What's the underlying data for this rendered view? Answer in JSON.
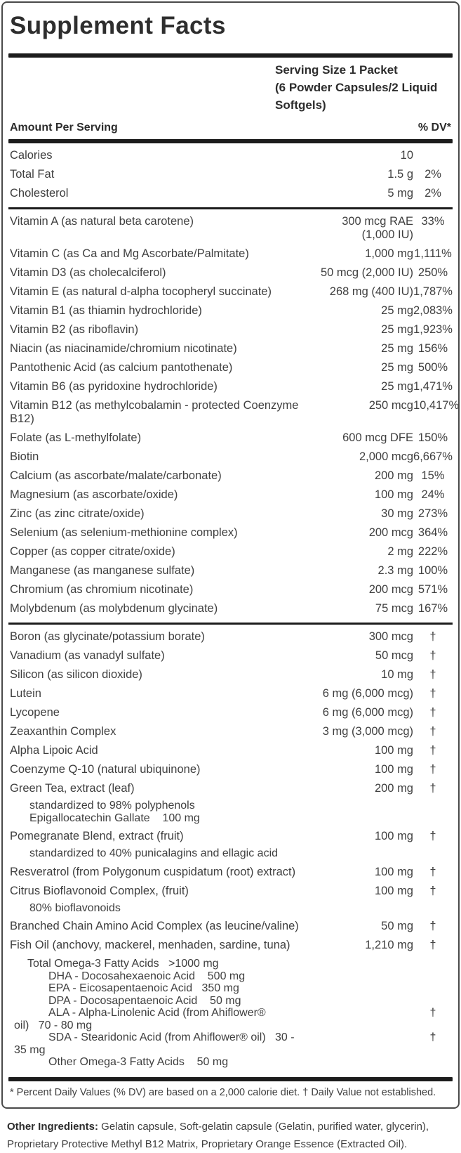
{
  "label": {
    "title": "Supplement Facts",
    "serving_line1": "Serving Size 1 Packet",
    "serving_line2": "(6 Powder Capsules/2 Liquid Softgels)",
    "amount_header": "Amount Per Serving",
    "dv_header": "% DV*",
    "footnote": "* Percent Daily Values (% DV) are based on a 2,000 calorie diet. † Daily Value not established."
  },
  "rows": [
    {
      "name": "Calories",
      "amount": "10",
      "dv": ""
    },
    {
      "name": "Total Fat",
      "amount": "1.5 g",
      "dv": "2%"
    },
    {
      "name": "Cholesterol",
      "amount": "5 mg",
      "dv": "2%"
    },
    {
      "rule": "med"
    },
    {
      "name": "Vitamin A (as natural beta carotene)",
      "amount": "300 mcg RAE (1,000 IU)",
      "dv": "33%"
    },
    {
      "name": "Vitamin C (as Ca and Mg Ascorbate/Palmitate)",
      "amount": "1,000 mg",
      "dv": "1,111%"
    },
    {
      "name": "Vitamin D3 (as cholecalciferol)",
      "amount": "50 mcg (2,000 IU)",
      "dv": "250%"
    },
    {
      "name": "Vitamin E (as natural d-alpha tocopheryl succinate)",
      "amount": "268 mg (400 IU)",
      "dv": "1,787%"
    },
    {
      "name": "Vitamin B1 (as thiamin hydrochloride)",
      "amount": "25 mg",
      "dv": "2,083%"
    },
    {
      "name": "Vitamin B2 (as riboflavin)",
      "amount": "25 mg",
      "dv": "1,923%"
    },
    {
      "name": "Niacin (as niacinamide/chromium nicotinate)",
      "amount": "25 mg",
      "dv": "156%"
    },
    {
      "name": "Pantothenic Acid (as calcium pantothenate)",
      "amount": "25 mg",
      "dv": "500%"
    },
    {
      "name": "Vitamin B6 (as pyridoxine hydrochloride)",
      "amount": "25 mg",
      "dv": "1,471%"
    },
    {
      "name": "Vitamin B12 (as methylcobalamin - protected Coenzyme B12)",
      "amount": "250 mcg",
      "dv": "10,417%"
    },
    {
      "name": "Folate (as L-methylfolate)",
      "amount": "600 mcg DFE",
      "dv": "150%"
    },
    {
      "name": "Biotin",
      "amount": "2,000 mcg",
      "dv": "6,667%"
    },
    {
      "name": "Calcium (as ascorbate/malate/carbonate)",
      "amount": "200 mg",
      "dv": "15%"
    },
    {
      "name": "Magnesium (as ascorbate/oxide)",
      "amount": "100 mg",
      "dv": "24%"
    },
    {
      "name": "Zinc (as zinc citrate/oxide)",
      "amount": "30 mg",
      "dv": "273%"
    },
    {
      "name": "Selenium (as selenium-methionine complex)",
      "amount": "200 mcg",
      "dv": "364%"
    },
    {
      "name": "Copper (as copper citrate/oxide)",
      "amount": "2 mg",
      "dv": "222%"
    },
    {
      "name": "Manganese (as manganese sulfate)",
      "amount": "2.3 mg",
      "dv": "100%"
    },
    {
      "name": "Chromium (as chromium nicotinate)",
      "amount": "200 mcg",
      "dv": "571%"
    },
    {
      "name": "Molybdenum (as molybdenum glycinate)",
      "amount": "75 mcg",
      "dv": "167%"
    },
    {
      "rule": "med"
    },
    {
      "name": "Boron (as glycinate/potassium borate)",
      "amount": "300 mcg",
      "dv": "†"
    },
    {
      "name": "Vanadium (as vanadyl sulfate)",
      "amount": "50 mcg",
      "dv": "†"
    },
    {
      "name": "Silicon (as silicon dioxide)",
      "amount": "10 mg",
      "dv": "†"
    },
    {
      "name": "Lutein",
      "amount": "6 mg (6,000 mcg)",
      "dv": "†"
    },
    {
      "name": "Lycopene",
      "amount": "6 mg (6,000 mcg)",
      "dv": "†"
    },
    {
      "name": "Zeaxanthin Complex",
      "amount": "3 mg (3,000 mcg)",
      "dv": "†"
    },
    {
      "name": "Alpha Lipoic Acid",
      "amount": "100 mg",
      "dv": "†"
    },
    {
      "name": "Coenzyme Q-10 (natural ubiquinone)",
      "amount": "100 mg",
      "dv": "†"
    },
    {
      "name": "Green Tea, extract (leaf)",
      "amount": "200 mg",
      "dv": "†"
    },
    {
      "subnote": [
        "standardized to 98% polyphenols",
        "Epigallocatechin Gallate    100 mg"
      ]
    },
    {
      "name": "Pomegranate Blend, extract (fruit)",
      "amount": "100 mg",
      "dv": "†"
    },
    {
      "subnote": [
        "standardized to 40% punicalagins and ellagic acid"
      ]
    },
    {
      "name": "Resveratrol (from Polygonum cuspidatum (root) extract)",
      "amount": "100 mg",
      "dv": "†"
    },
    {
      "name": "Citrus Bioflavonoid Complex, (fruit)",
      "amount": "100 mg",
      "dv": "†"
    },
    {
      "subnote": [
        "80% bioflavonoids"
      ]
    },
    {
      "name": "Branched Chain Amino Acid Complex (as leucine/valine)",
      "amount": "50 mg",
      "dv": "†"
    },
    {
      "name": "Fish Oil (anchovy, mackerel, menhaden, sardine, tuna)",
      "amount": "1,210 mg",
      "dv": "†"
    },
    {
      "omega": [
        {
          "text": "Total Omega-3 Fatty Acids   >1000 mg",
          "indent": 1,
          "dv": ""
        },
        {
          "text": "DHA - Docosahexaenoic Acid    500 mg",
          "indent": 2,
          "dv": ""
        },
        {
          "text": "EPA - Eicosapentaenoic Acid   350 mg",
          "indent": 2,
          "dv": ""
        },
        {
          "text": "DPA - Docosapentaenoic Acid    50 mg",
          "indent": 2,
          "dv": ""
        },
        {
          "text": "ALA - Alpha-Linolenic Acid (from Ahiflower®",
          "wrap": "oil)   70 - 80 mg",
          "indent": 2,
          "dv": "†"
        },
        {
          "text": "SDA - Stearidonic Acid (from Ahiflower® oil)   30 -",
          "wrap": "35 mg",
          "indent": 2,
          "dv": "†"
        },
        {
          "text": "Other Omega-3 Fatty Acids    50 mg",
          "indent": 2,
          "dv": ""
        }
      ]
    }
  ],
  "other_ingredients": {
    "label": "Other Ingredients:",
    "text": " Gelatin capsule, Soft-gelatin capsule (Gelatin, purified water, glycerin), Proprietary Protective Methyl B12 Matrix, Proprietary Orange Essence (Extracted Oil)."
  },
  "colors": {
    "text": "#3f3f3f",
    "heading": "#2c2c2c",
    "rule": "#1c1c1c",
    "border": "#4a4a4a",
    "background": "#ffffff"
  }
}
